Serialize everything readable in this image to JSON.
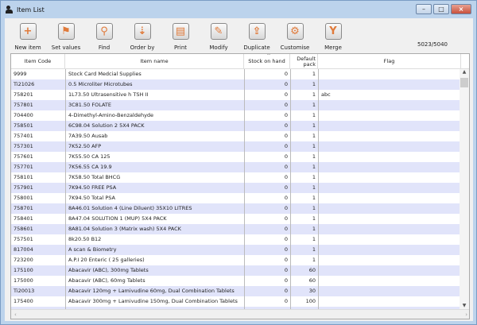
{
  "window": {
    "title": "Item List",
    "count": "5023/5040"
  },
  "toolbar": [
    {
      "label": "New item",
      "icon": "plus-icon",
      "glyph": "+"
    },
    {
      "label": "Set values",
      "icon": "flag-icon",
      "glyph": "⚑"
    },
    {
      "label": "Find",
      "icon": "magnifier-icon",
      "glyph": "⚲"
    },
    {
      "label": "Order by",
      "icon": "sort-icon",
      "glyph": "⇣"
    },
    {
      "label": "Print",
      "icon": "printer-icon",
      "glyph": "▤"
    },
    {
      "label": "Modify",
      "icon": "edit-icon",
      "glyph": "✎"
    },
    {
      "label": "Duplicate",
      "icon": "duplicate-icon",
      "glyph": "⇪"
    },
    {
      "label": "Customise",
      "icon": "gear-icon",
      "glyph": "⚙"
    },
    {
      "label": "Merge",
      "icon": "merge-icon",
      "glyph": "Y"
    }
  ],
  "columns": [
    "Item Code",
    "Item name",
    "Stock on hand",
    "Default pack",
    "Flag"
  ],
  "rows": [
    [
      "9999",
      "Stock Card Medcial Supplies",
      "0",
      "1",
      ""
    ],
    [
      "Ti21026",
      "0.5 Microliter Microtubes",
      "0",
      "1",
      ""
    ],
    [
      "758201",
      "1L73.50 Ultrasensitive h TSH II",
      "0",
      "1",
      "abc"
    ],
    [
      "757801",
      "3C81.50  FOLATE",
      "0",
      "1",
      ""
    ],
    [
      "704400",
      "4-Dimethyl-Amino-Benzaldehyde",
      "0",
      "1",
      ""
    ],
    [
      "758501",
      "6C98.04 Solution 2 5X4 PACK",
      "0",
      "1",
      ""
    ],
    [
      "757401",
      "7A39.50 Ausab",
      "0",
      "1",
      ""
    ],
    [
      "757301",
      "7K52.50 AFP",
      "0",
      "1",
      ""
    ],
    [
      "757601",
      "7K55.50 CA 125",
      "0",
      "1",
      ""
    ],
    [
      "757701",
      "7K56.55 CA 19.9",
      "0",
      "1",
      ""
    ],
    [
      "758101",
      "7K58.50 Total BHCG",
      "0",
      "1",
      ""
    ],
    [
      "757901",
      "7K94.50 FREE PSA",
      "0",
      "1",
      ""
    ],
    [
      "758001",
      "7K94.50 Total PSA",
      "0",
      "1",
      ""
    ],
    [
      "758701",
      "8A46.01 Solution 4 (Line Diluent) 35X10 LITRES",
      "0",
      "1",
      ""
    ],
    [
      "758401",
      "8A47.04 SOLUTION 1 (MUP) 5X4 PACK",
      "0",
      "1",
      ""
    ],
    [
      "758601",
      "8A81.04 Solution 3 (Matrix wash) 5X4 PACK",
      "0",
      "1",
      ""
    ],
    [
      "757501",
      "8k20.50 B12",
      "0",
      "1",
      ""
    ],
    [
      "817004",
      "A scan & Biometry",
      "0",
      "1",
      ""
    ],
    [
      "723200",
      "A.P.I 20 Enteric ( 25 galleries)",
      "0",
      "1",
      ""
    ],
    [
      "175100",
      "Abacavir (ABC), 300mg Tablets",
      "0",
      "60",
      ""
    ],
    [
      "175000",
      "Abacavir (ABC), 60mg Tablets",
      "0",
      "60",
      ""
    ],
    [
      "Ti20013",
      "Abacavir 120mg + Lamivudine 60mg, Dual Combination Tablets",
      "0",
      "30",
      ""
    ],
    [
      "175400",
      "Abacavir 300mg + Lamivudine 150mg, Dual Combination Tablets",
      "0",
      "100",
      ""
    ]
  ]
}
